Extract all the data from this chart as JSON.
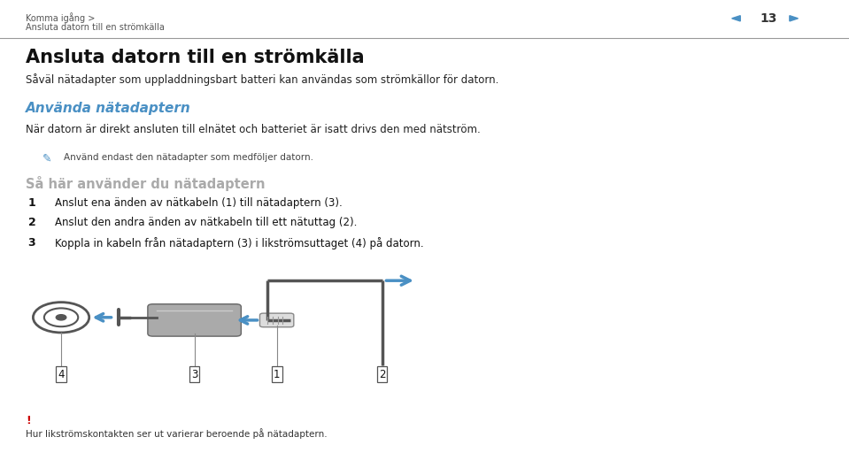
{
  "bg_color": "#ffffff",
  "header_text1": "Komma igång >",
  "header_text2": "Ansluta datorn till en strömkälla",
  "header_page": "13",
  "header_arrow_color": "#4a90c4",
  "title": "Ansluta datorn till en strömkälla",
  "subtitle": "Såväl nätadapter som uppladdningsbart batteri kan användas som strömkällor för datorn.",
  "section_title": "Använda nätadaptern",
  "section_title_color": "#4a90c4",
  "section_body": "När datorn är direkt ansluten till elnätet och batteriet är isatt drivs den med nätström.",
  "note_text": "Använd endast den nätadapter som medföljer datorn.",
  "steps_title": "Så här använder du nätadaptern",
  "steps_title_color": "#aaaaaa",
  "step1": "Anslut ena änden av nätkabeln (1) till nätadaptern (3).",
  "step2": "Anslut den andra änden av nätkabeln till ett nätuttag (2).",
  "step3": "Koppla in kabeln från nätadaptern (3) i likströmsuttaget (4) på datorn.",
  "warning_color": "#cc0000",
  "warning_text": "Hur likströmskontakten ser ut varierar beroende på nätadaptern.",
  "diagram_arrow_color": "#4a90c4",
  "dark_gray": "#555555",
  "med_gray": "#888888",
  "light_gray": "#aaaaaa"
}
